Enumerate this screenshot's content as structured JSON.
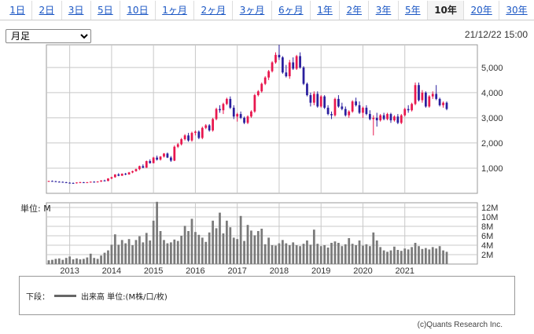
{
  "tabs": [
    {
      "label": "1日",
      "active": false
    },
    {
      "label": "2日",
      "active": false
    },
    {
      "label": "3日",
      "active": false
    },
    {
      "label": "5日",
      "active": false
    },
    {
      "label": "10日",
      "active": false
    },
    {
      "label": "1ヶ月",
      "active": false
    },
    {
      "label": "2ヶ月",
      "active": false
    },
    {
      "label": "3ヶ月",
      "active": false
    },
    {
      "label": "6ヶ月",
      "active": false
    },
    {
      "label": "1年",
      "active": false
    },
    {
      "label": "2年",
      "active": false
    },
    {
      "label": "3年",
      "active": false
    },
    {
      "label": "5年",
      "active": false
    },
    {
      "label": "10年",
      "active": true
    },
    {
      "label": "20年",
      "active": false
    },
    {
      "label": "30年",
      "active": false
    }
  ],
  "period_select": {
    "value": "月足"
  },
  "timestamp": "21/12/22 15:00",
  "legend": {
    "lower_label": "下段：",
    "series_label": "出来高 単位:(M株/口/枚)"
  },
  "copyright": "(c)Quants Research Inc.",
  "colors": {
    "up": "#e8174e",
    "down": "#2a1f9e",
    "volume": "#7a7a7a",
    "grid": "#c8c8c8",
    "frame": "#999999"
  },
  "chart_data": {
    "type": "candlestick",
    "price_axis": {
      "ticks": [
        1000,
        2000,
        3000,
        4000,
        5000
      ],
      "tick_labels": [
        "1,000",
        "2,000",
        "3,000",
        "4,000",
        "5,000"
      ],
      "ylim": [
        0,
        5900
      ]
    },
    "volume_axis": {
      "unit_label": "単位: M",
      "ticks": [
        2,
        4,
        6,
        8,
        10,
        12
      ],
      "tick_labels": [
        "2M",
        "4M",
        "6M",
        "8M",
        "10M",
        "12M"
      ],
      "ylim": [
        0,
        13
      ]
    },
    "x_year_labels": [
      "2013",
      "2014",
      "2015",
      "2016",
      "2017",
      "2018",
      "2019",
      "2020",
      "2021"
    ],
    "start": "2012-07",
    "monthly": [
      [
        480,
        500,
        460,
        490,
        0.8
      ],
      [
        490,
        510,
        470,
        480,
        0.9
      ],
      [
        480,
        495,
        450,
        460,
        1.1
      ],
      [
        460,
        480,
        440,
        455,
        1.2
      ],
      [
        455,
        470,
        430,
        440,
        0.9
      ],
      [
        440,
        455,
        410,
        420,
        1.3
      ],
      [
        420,
        440,
        400,
        410,
        1.6
      ],
      [
        410,
        430,
        390,
        400,
        1.0
      ],
      [
        400,
        440,
        390,
        430,
        1.2
      ],
      [
        430,
        460,
        420,
        440,
        1.0
      ],
      [
        440,
        450,
        410,
        420,
        1.1
      ],
      [
        420,
        450,
        410,
        440,
        1.4
      ],
      [
        440,
        470,
        430,
        460,
        2.2
      ],
      [
        460,
        480,
        430,
        440,
        1.3
      ],
      [
        440,
        480,
        430,
        470,
        1.1
      ],
      [
        470,
        520,
        450,
        510,
        1.8
      ],
      [
        510,
        540,
        480,
        490,
        2.4
      ],
      [
        490,
        600,
        480,
        590,
        2.9
      ],
      [
        590,
        660,
        560,
        640,
        4.1
      ],
      [
        640,
        760,
        620,
        750,
        6.3
      ],
      [
        750,
        800,
        680,
        700,
        4.1
      ],
      [
        700,
        790,
        690,
        780,
        5.1
      ],
      [
        780,
        810,
        720,
        750,
        4.4
      ],
      [
        750,
        850,
        740,
        830,
        5.3
      ],
      [
        830,
        900,
        800,
        880,
        4.0
      ],
      [
        880,
        980,
        860,
        960,
        5.1
      ],
      [
        960,
        1100,
        920,
        1080,
        5.9
      ],
      [
        1080,
        1150,
        1000,
        1020,
        4.6
      ],
      [
        1020,
        1300,
        1010,
        1280,
        6.6
      ],
      [
        1280,
        1350,
        1180,
        1200,
        5.0
      ],
      [
        1200,
        1450,
        1190,
        1420,
        9.2
      ],
      [
        1420,
        1500,
        1300,
        1340,
        13.2
      ],
      [
        1340,
        1480,
        1300,
        1460,
        7.0
      ],
      [
        1460,
        1600,
        1420,
        1580,
        5.1
      ],
      [
        1580,
        1620,
        1400,
        1420,
        4.4
      ],
      [
        1420,
        1480,
        1250,
        1300,
        4.6
      ],
      [
        1300,
        1900,
        1280,
        1850,
        5.2
      ],
      [
        1850,
        2000,
        1800,
        1950,
        4.9
      ],
      [
        1950,
        2200,
        1900,
        2150,
        6.0
      ],
      [
        2150,
        2350,
        2100,
        2300,
        8.1
      ],
      [
        2300,
        2400,
        2050,
        2100,
        7.0
      ],
      [
        2100,
        2450,
        2050,
        2400,
        9.6
      ],
      [
        2400,
        2500,
        2300,
        2450,
        6.8
      ],
      [
        2450,
        2500,
        2150,
        2200,
        6.2
      ],
      [
        2200,
        2650,
        2150,
        2600,
        5.6
      ],
      [
        2600,
        2750,
        2550,
        2700,
        4.7
      ],
      [
        2700,
        2750,
        2450,
        2500,
        6.7
      ],
      [
        2500,
        3000,
        2450,
        2950,
        9.2
      ],
      [
        2950,
        3400,
        2900,
        3350,
        7.6
      ],
      [
        3350,
        3500,
        3200,
        3300,
        10.9
      ],
      [
        3300,
        3600,
        3150,
        3550,
        6.5
      ],
      [
        3550,
        3800,
        3500,
        3750,
        9.2
      ],
      [
        3750,
        3850,
        3350,
        3400,
        7.8
      ],
      [
        3400,
        3500,
        2950,
        3050,
        5.6
      ],
      [
        3050,
        3200,
        2850,
        3150,
        5.3
      ],
      [
        3150,
        3250,
        2950,
        3000,
        10.2
      ],
      [
        3000,
        3050,
        2750,
        2800,
        4.9
      ],
      [
        2800,
        3100,
        2750,
        3050,
        8.3
      ],
      [
        3050,
        3300,
        3000,
        3250,
        7.1
      ],
      [
        3250,
        3950,
        3200,
        3900,
        6.1
      ],
      [
        3900,
        4100,
        3850,
        4050,
        7.0
      ],
      [
        4050,
        4400,
        4000,
        4350,
        7.5
      ],
      [
        4350,
        4650,
        4300,
        4600,
        4.2
      ],
      [
        4600,
        4900,
        4500,
        4850,
        5.6
      ],
      [
        4850,
        5250,
        4800,
        5200,
        4.0
      ],
      [
        5200,
        5600,
        5150,
        5500,
        3.9
      ],
      [
        5500,
        5900,
        5300,
        5400,
        4.4
      ],
      [
        5400,
        5450,
        4750,
        4800,
        5.1
      ],
      [
        4800,
        5100,
        4600,
        4650,
        4.4
      ],
      [
        4650,
        5300,
        4550,
        5200,
        4.0
      ],
      [
        5200,
        5400,
        4900,
        4950,
        4.6
      ],
      [
        4950,
        5500,
        4900,
        5450,
        4.0
      ],
      [
        5450,
        5600,
        4950,
        5000,
        3.8
      ],
      [
        5000,
        5050,
        4300,
        4350,
        4.3
      ],
      [
        4350,
        4400,
        3850,
        3900,
        5.0
      ],
      [
        3900,
        4000,
        3450,
        3600,
        4.1
      ],
      [
        3600,
        4050,
        3500,
        3950,
        7.3
      ],
      [
        3950,
        4050,
        3400,
        3450,
        4.3
      ],
      [
        3450,
        3900,
        3400,
        3850,
        3.8
      ],
      [
        3850,
        3900,
        3350,
        3400,
        4.0
      ],
      [
        3400,
        3500,
        3100,
        3150,
        3.5
      ],
      [
        3150,
        3250,
        2950,
        3100,
        4.5
      ],
      [
        3100,
        3800,
        3050,
        3750,
        4.8
      ],
      [
        3750,
        3900,
        3400,
        3450,
        4.5
      ],
      [
        3450,
        3600,
        3300,
        3350,
        3.8
      ],
      [
        3350,
        3450,
        3050,
        3100,
        4.2
      ],
      [
        3100,
        3300,
        3000,
        3250,
        5.5
      ],
      [
        3250,
        3700,
        3200,
        3650,
        4.3
      ],
      [
        3650,
        3800,
        3450,
        3500,
        4.0
      ],
      [
        3500,
        3650,
        3150,
        3200,
        5.0
      ],
      [
        3200,
        3450,
        3000,
        3400,
        3.9
      ],
      [
        3400,
        3500,
        3100,
        3150,
        4.2
      ],
      [
        3150,
        3300,
        2900,
        2950,
        3.8
      ],
      [
        2950,
        3100,
        2300,
        3000,
        6.7
      ],
      [
        3000,
        3200,
        2650,
        2900,
        5.0
      ],
      [
        2900,
        3150,
        2850,
        3100,
        3.6
      ],
      [
        3100,
        3200,
        2900,
        2950,
        2.9
      ],
      [
        2950,
        3200,
        2900,
        3150,
        2.6
      ],
      [
        3150,
        3200,
        2800,
        2900,
        2.9
      ],
      [
        2900,
        3100,
        2850,
        3050,
        3.7
      ],
      [
        3050,
        3150,
        2750,
        2800,
        3.0
      ],
      [
        2800,
        3150,
        2750,
        3100,
        2.8
      ],
      [
        3100,
        3400,
        3050,
        3350,
        3.3
      ],
      [
        3350,
        3500,
        3200,
        3300,
        3.1
      ],
      [
        3300,
        3600,
        3250,
        3550,
        3.6
      ],
      [
        3550,
        4400,
        3500,
        4300,
        4.5
      ],
      [
        4300,
        4400,
        3650,
        3700,
        3.8
      ],
      [
        3700,
        4100,
        3600,
        4000,
        3.2
      ],
      [
        4000,
        4050,
        3400,
        3450,
        3.4
      ],
      [
        3450,
        3900,
        3400,
        3850,
        3.1
      ],
      [
        3850,
        4050,
        3750,
        3950,
        3.6
      ],
      [
        3950,
        4300,
        3700,
        3750,
        3.3
      ],
      [
        3750,
        3800,
        3450,
        3500,
        3.8
      ],
      [
        3500,
        3650,
        3400,
        3600,
        2.9
      ],
      [
        3600,
        3650,
        3300,
        3350,
        2.6
      ]
    ]
  }
}
